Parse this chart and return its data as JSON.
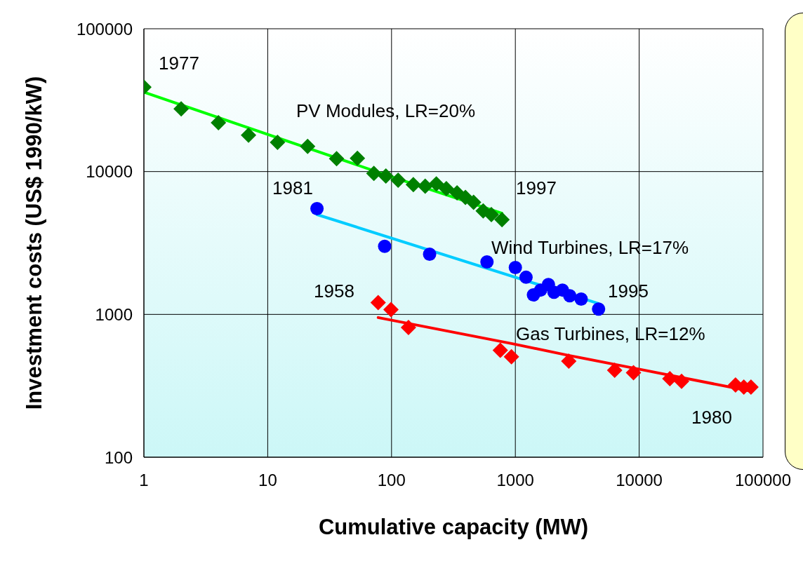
{
  "chart_data": {
    "type": "scatter",
    "xlabel": "Cumulative capacity (MW)",
    "ylabel": "Investment costs (US$ 1990/kW)",
    "log": "xy",
    "grid": true,
    "xlim": [
      1,
      100000
    ],
    "ylim": [
      100,
      100000
    ],
    "xticks": [
      1,
      10,
      100,
      1000,
      10000,
      100000
    ],
    "yticks": [
      100,
      1000,
      10000,
      100000
    ],
    "series": [
      {
        "color": "#008000",
        "marker": "diamond",
        "x": [
          1,
          2,
          4,
          7,
          12,
          21,
          36,
          53,
          72,
          90,
          113,
          150,
          187,
          230,
          277,
          338,
          395,
          460,
          550,
          640,
          780
        ],
        "values": [
          39000,
          27500,
          22000,
          18000,
          16000,
          15000,
          12300,
          12400,
          9700,
          9300,
          8700,
          8100,
          7900,
          8200,
          7600,
          7100,
          6600,
          6100,
          5300,
          5000,
          4600
        ]
      },
      {
        "type": "line",
        "color": "#00ff00",
        "marker": "none",
        "x": [
          1,
          100,
          780
        ],
        "values": [
          36000,
          9200,
          5100
        ]
      },
      {
        "color": "#0000ff",
        "marker": "circle",
        "x": [
          25,
          88,
          203,
          590,
          1000,
          1220,
          1400,
          1600,
          1850,
          2050,
          2400,
          2750,
          3400,
          4700
        ],
        "values": [
          5500,
          3000,
          2640,
          2330,
          2130,
          1820,
          1370,
          1480,
          1620,
          1430,
          1480,
          1350,
          1280,
          1090
        ]
      },
      {
        "type": "line",
        "color": "#00ccff",
        "marker": "none",
        "x": [
          25,
          4700
        ],
        "values": [
          5000,
          1190
        ]
      },
      {
        "color": "#ff0000",
        "marker": "diamond",
        "x": [
          78,
          99,
          137,
          756,
          930,
          2700,
          6340,
          9000,
          17700,
          22000,
          60000,
          70000,
          80000
        ],
        "values": [
          1210,
          1080,
          810,
          560,
          505,
          470,
          406,
          390,
          355,
          340,
          320,
          310,
          310
        ]
      },
      {
        "type": "line",
        "color": "#ff0000",
        "marker": "none",
        "x": [
          78,
          930,
          2700,
          9000,
          80000
        ],
        "values": [
          950,
          625,
          516,
          421,
          290
        ]
      }
    ],
    "annotations": [
      "1977",
      "PV Modules, LR=20%",
      "1981",
      "1997",
      "Wind Turbines, LR=17%",
      "1958",
      "1995",
      "Gas Turbines, LR=12%",
      "1980"
    ]
  }
}
